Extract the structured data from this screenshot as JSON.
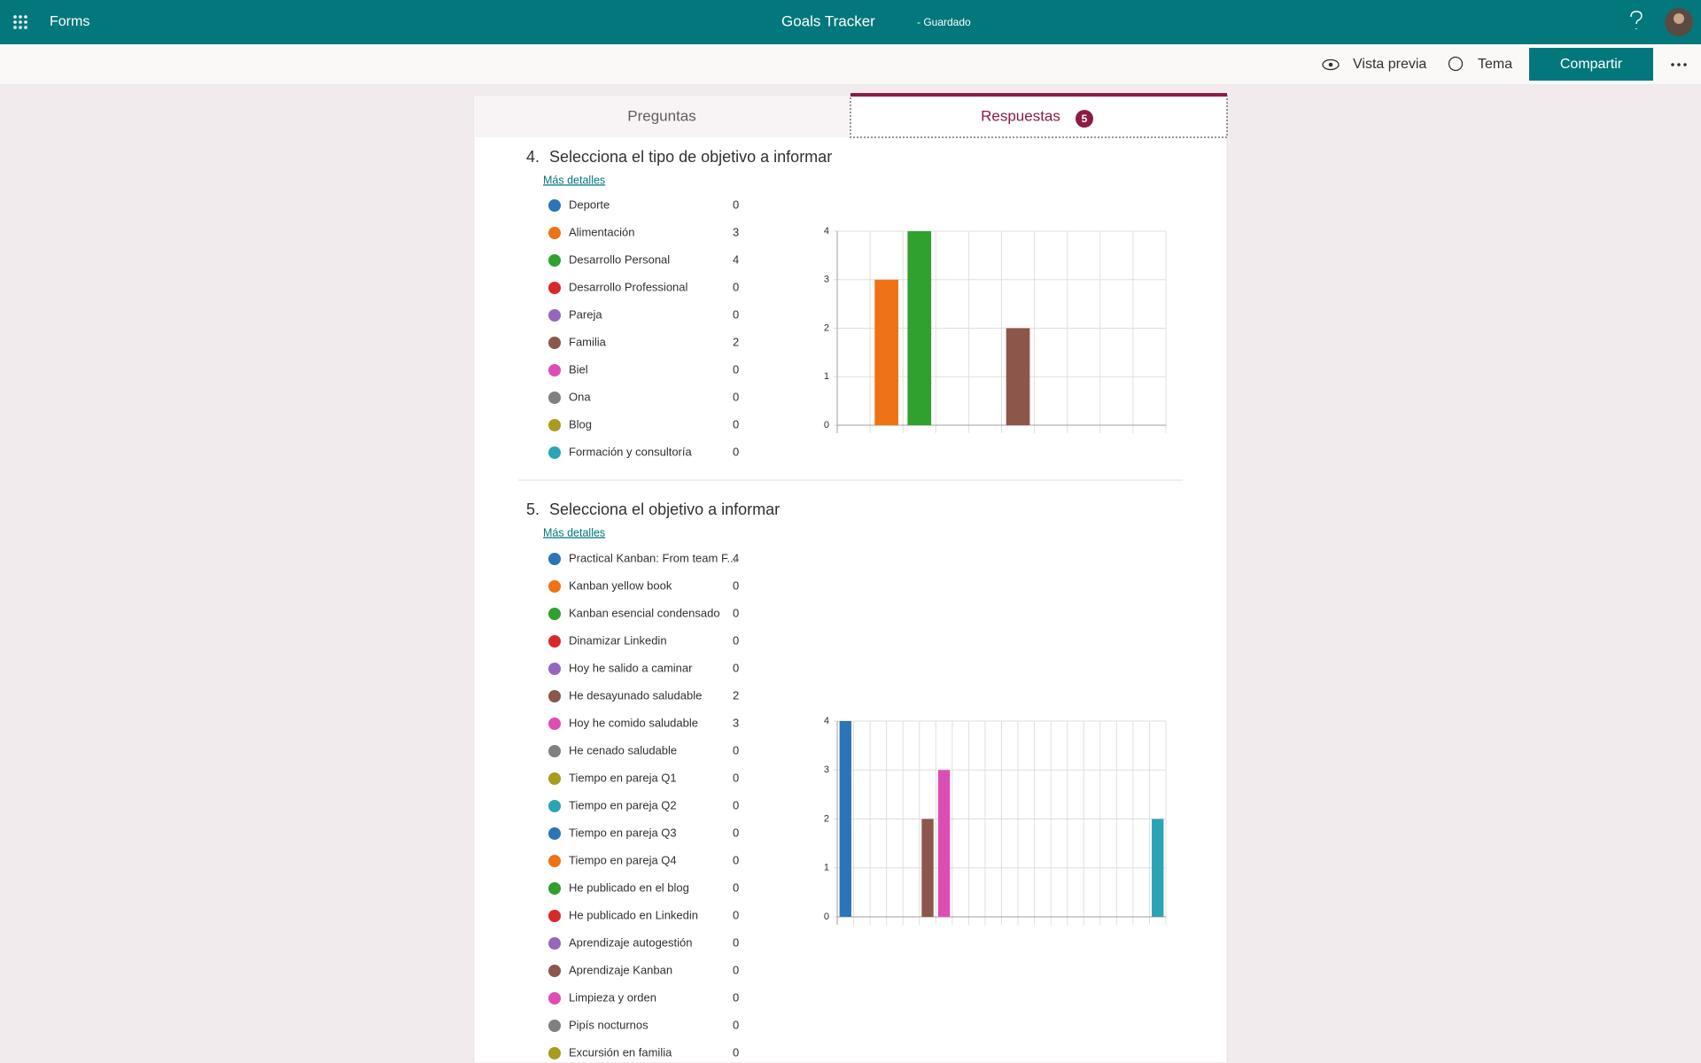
{
  "app": {
    "name": "Forms",
    "document_title": "Goals Tracker",
    "status": "- Guardado"
  },
  "toolbar": {
    "preview": "Vista previa",
    "theme": "Tema",
    "share": "Compartir"
  },
  "tabs": {
    "questions": "Preguntas",
    "responses": "Respuestas",
    "responses_count": 5
  },
  "questions": [
    {
      "number": "4.",
      "title": "Selecciona el tipo de objetivo a informar",
      "details_link": "Más detalles"
    },
    {
      "number": "5.",
      "title": "Selecciona el objetivo a informar",
      "details_link": "Más detalles"
    }
  ],
  "chart_data": [
    {
      "type": "bar",
      "categories": [
        "Deporte",
        "Alimentación",
        "Desarrollo Personal",
        "Desarrollo Professional",
        "Pareja",
        "Familia",
        "Biel",
        "Ona",
        "Blog",
        "Formación y consultoría"
      ],
      "values": [
        0,
        3,
        4,
        0,
        0,
        2,
        0,
        0,
        0,
        0
      ],
      "colors": [
        "#2b74b8",
        "#ee7314",
        "#30a02f",
        "#d8292a",
        "#9467bd",
        "#8c564b",
        "#dc4eb4",
        "#808080",
        "#a79c1e",
        "#2ba4b3"
      ],
      "ylim": [
        0,
        4
      ],
      "yticks": [
        0,
        1,
        2,
        3,
        4
      ],
      "grid": true
    },
    {
      "type": "bar",
      "categories": [
        "Practical Kanban: From team F...",
        "Kanban yellow book",
        "Kanban esencial condensado",
        "Dinamizar Linkedin",
        "Hoy he salido a caminar",
        "He desayunado saludable",
        "Hoy he comido saludable",
        "He cenado saludable",
        "Tiempo en pareja Q1",
        "Tiempo en pareja Q2",
        "Tiempo en pareja Q3",
        "Tiempo en pareja Q4",
        "He publicado en el blog",
        "He publicado en Linkedin",
        "Aprendizaje autogestión",
        "Aprendizaje Kanban",
        "Limpieza y orden",
        "Pipís nocturnos",
        "Excursión en familia",
        null
      ],
      "values": [
        4,
        0,
        0,
        0,
        0,
        2,
        3,
        0,
        0,
        0,
        0,
        0,
        0,
        0,
        0,
        0,
        0,
        0,
        0,
        2
      ],
      "colors": [
        "#2b74b8",
        "#ee7314",
        "#30a02f",
        "#d8292a",
        "#9467bd",
        "#8c564b",
        "#dc4eb4",
        "#808080",
        "#a79c1e",
        "#2ba4b3",
        "#2b74b8",
        "#ee7314",
        "#30a02f",
        "#d8292a",
        "#9467bd",
        "#8c564b",
        "#dc4eb4",
        "#808080",
        "#a79c1e",
        "#2ba4b3"
      ],
      "ylim": [
        0,
        4
      ],
      "yticks": [
        0,
        1,
        2,
        3,
        4
      ],
      "grid": true
    }
  ]
}
